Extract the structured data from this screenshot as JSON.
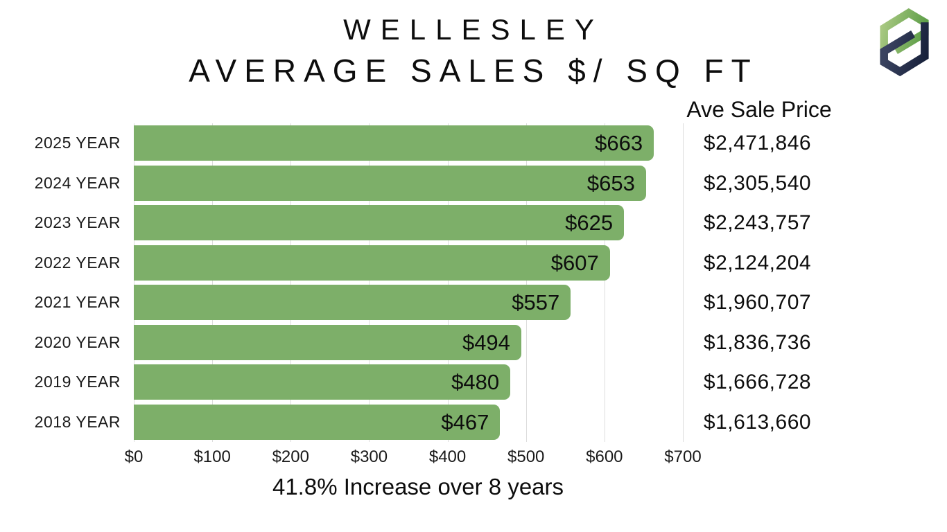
{
  "title": {
    "line1": "WELLESLEY",
    "line2": "AVERAGE SALES $/ SQ FT"
  },
  "logo": {
    "name": "Pd monogram",
    "green_light": "#aac983",
    "green_dark": "#5f9f49",
    "navy_light": "#3a4360",
    "navy_dark": "#161f39"
  },
  "price_column": {
    "header": "Ave Sale Price"
  },
  "caption": "41.8% Increase over 8 years",
  "chart_data": {
    "type": "bar",
    "orientation": "horizontal",
    "title": "WELLESLEY AVERAGE SALES $/ SQ FT",
    "categories": [
      "2025 YEAR",
      "2024 YEAR",
      "2023 YEAR",
      "2022 YEAR",
      "2021 YEAR",
      "2020 YEAR",
      "2019 YEAR",
      "2018 YEAR"
    ],
    "values": [
      663,
      653,
      625,
      607,
      557,
      494,
      480,
      467
    ],
    "bar_labels": [
      "$663",
      "$653",
      "$625",
      "$607",
      "$557",
      "$494",
      "$480",
      "$467"
    ],
    "ave_sale_prices": [
      "$2,471,846",
      "$2,305,540",
      "$2,243,757",
      "$2,124,204",
      "$1,960,707",
      "$1,836,736",
      "$1,666,728",
      "$1,613,660"
    ],
    "x_ticks": [
      "$0",
      "$100",
      "$200",
      "$300",
      "$400",
      "$500",
      "$600",
      "$700"
    ],
    "xlim": [
      0,
      700
    ],
    "bar_color": "#7daf69",
    "gridline_color": "#dcdcdc",
    "grid": "vertical",
    "legend": "none",
    "annotation": "41.8% Increase over 8 years"
  }
}
